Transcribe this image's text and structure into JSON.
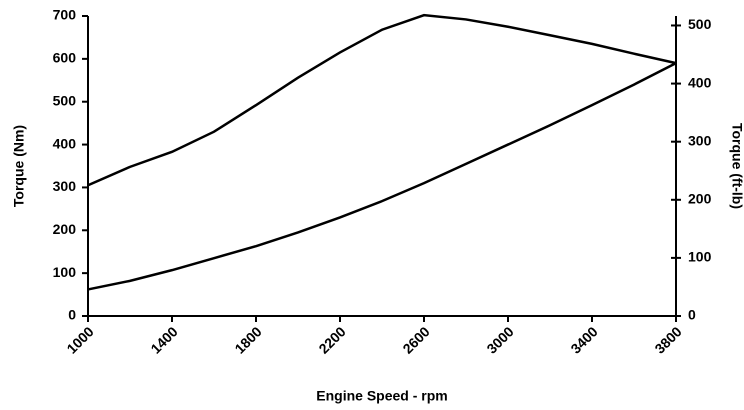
{
  "chart_data": {
    "type": "line",
    "x_label": "Engine Speed - rpm",
    "y_label": "Torque (Nm)",
    "y2_label": "Torque (ft-lb)",
    "x": [
      1000,
      1200,
      1400,
      1600,
      1800,
      2000,
      2200,
      2400,
      2600,
      2800,
      3000,
      3200,
      3400,
      3600,
      3800
    ],
    "series": [
      {
        "color": "#000000",
        "values": [
          305,
          348,
          383,
          430,
          492,
          556,
          615,
          668,
          702,
          692,
          675,
          655,
          635,
          612,
          590
        ]
      },
      {
        "color": "#000000",
        "values": [
          62,
          82,
          107,
          135,
          163,
          195,
          230,
          268,
          310,
          355,
          400,
          445,
          492,
          540,
          590
        ]
      }
    ],
    "xlim": [
      1000,
      3800
    ],
    "xticks": [
      1000,
      1400,
      1800,
      2200,
      2600,
      3000,
      3400,
      3800
    ],
    "ylim": [
      0,
      700
    ],
    "yticks": [
      0,
      100,
      200,
      300,
      400,
      500,
      600,
      700
    ],
    "y2lim": [
      0,
      516.3
    ],
    "y2ticks": [
      0,
      100,
      200,
      300,
      400,
      500
    ],
    "grid": false
  }
}
